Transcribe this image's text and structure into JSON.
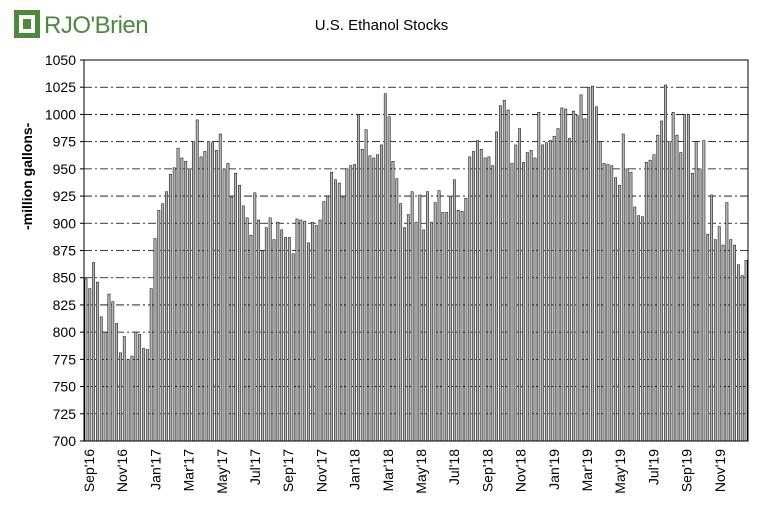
{
  "logo": {
    "text": "RJO'Brien",
    "color": "#4a8a3a"
  },
  "chart_data": {
    "type": "bar",
    "title": "U.S. Ethanol Stocks",
    "ylabel": "-million gallons-",
    "xlabel": "",
    "ylim": [
      700,
      1050
    ],
    "yticks": [
      700,
      725,
      750,
      775,
      800,
      825,
      850,
      875,
      900,
      925,
      950,
      975,
      1000,
      1025,
      1050
    ],
    "grid": "horizontal dash-dot",
    "bar_color": "#b4b4b4",
    "month_labels": [
      "Sep'16",
      "Nov'16",
      "Jan'17",
      "Mar'17",
      "May'17",
      "Jul'17",
      "Sep'17",
      "Nov'17",
      "Jan'18",
      "Mar'18",
      "May'18",
      "Jul'18",
      "Sep'18",
      "Nov'18",
      "Jan'19",
      "Mar'19",
      "May'19",
      "Jul'19",
      "Sep'19",
      "Nov'19"
    ],
    "values": [
      849,
      840,
      864,
      846,
      814,
      800,
      835,
      828,
      808,
      781,
      796,
      775,
      778,
      800,
      798,
      785,
      784,
      840,
      886,
      912,
      918,
      929,
      945,
      951,
      969,
      960,
      957,
      950,
      975,
      995,
      961,
      966,
      975,
      974,
      967,
      982,
      950,
      955,
      924,
      946,
      935,
      916,
      905,
      889,
      928,
      903,
      875,
      896,
      905,
      885,
      901,
      894,
      887,
      887,
      872,
      904,
      903,
      902,
      882,
      901,
      898,
      903,
      920,
      925,
      947,
      940,
      937,
      924,
      950,
      953,
      954,
      1000,
      968,
      986,
      962,
      960,
      963,
      972,
      1019,
      998,
      957,
      941,
      918,
      896,
      908,
      929,
      901,
      926,
      894,
      929,
      901,
      919,
      930,
      910,
      910,
      925,
      940,
      912,
      911,
      923,
      961,
      966,
      976,
      968,
      960,
      961,
      953,
      984,
      1008,
      1013,
      1004,
      955,
      972,
      987,
      956,
      965,
      967,
      960,
      1002,
      972,
      974,
      976,
      980,
      987,
      1006,
      1005,
      978,
      1003,
      999,
      1018,
      996,
      1025,
      1026,
      1007,
      975,
      955,
      954,
      953,
      942,
      935,
      982,
      950,
      947,
      915,
      907,
      906,
      956,
      958,
      963,
      981,
      994,
      1027,
      975,
      1002,
      981,
      965,
      1000,
      1000,
      946,
      975,
      950,
      976,
      890,
      926,
      885,
      897,
      880,
      919,
      885,
      880,
      862,
      852,
      866
    ]
  }
}
